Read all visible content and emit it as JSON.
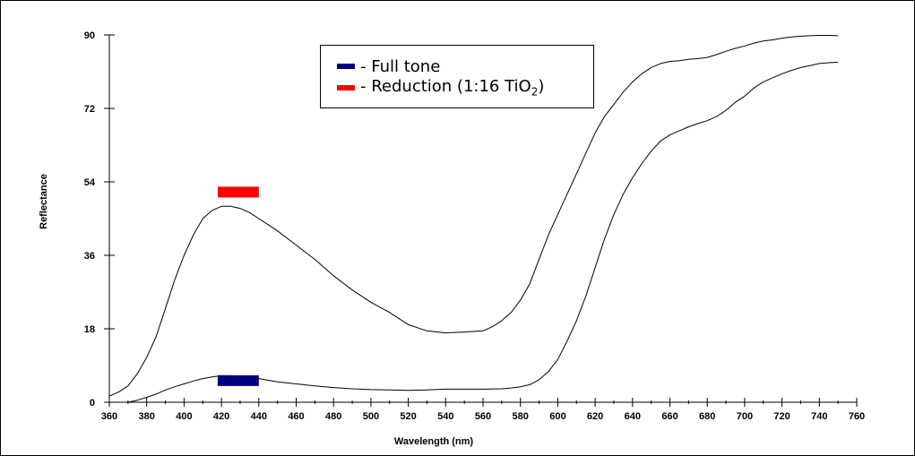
{
  "chart_data": {
    "type": "line",
    "title": "",
    "xlabel": "Wavelength (nm)",
    "ylabel": "Reflectance",
    "xlim": [
      360,
      760
    ],
    "ylim": [
      0,
      90
    ],
    "x_ticks": [
      "360",
      "380",
      "400",
      "420",
      "440",
      "460",
      "480",
      "500",
      "520",
      "540",
      "560",
      "580",
      "600",
      "620",
      "640",
      "660",
      "680",
      "700",
      "720",
      "740",
      "760"
    ],
    "y_ticks": [
      "0",
      "18",
      "36",
      "54",
      "72",
      "90"
    ],
    "legend": {
      "placement": "top-center",
      "entries": [
        {
          "label": "- Full tone",
          "color": "#000080"
        },
        {
          "label_prefix": "- Reduction (1:16 TiO",
          "label_sub": "2",
          "label_suffix": ")",
          "color": "#ff0000"
        }
      ]
    },
    "series": [
      {
        "name": "Reduction (1:16 TiO2)",
        "color": "#000000",
        "marker_color": "#ff0000",
        "marker": {
          "x": [
            418,
            440
          ],
          "y": 51.5
        },
        "x": [
          360,
          365,
          370,
          375,
          380,
          385,
          390,
          395,
          400,
          405,
          410,
          415,
          420,
          425,
          430,
          435,
          440,
          445,
          450,
          460,
          470,
          480,
          490,
          500,
          510,
          520,
          530,
          540,
          550,
          560,
          565,
          570,
          575,
          580,
          585,
          590,
          595,
          600,
          605,
          610,
          615,
          620,
          625,
          630,
          635,
          640,
          645,
          650,
          655,
          660,
          665,
          670,
          675,
          680,
          685,
          690,
          695,
          700,
          705,
          710,
          715,
          720,
          725,
          730,
          735,
          740,
          745,
          750
        ],
        "y": [
          1.5,
          2.5,
          4,
          7,
          11,
          16,
          23,
          30,
          36,
          41,
          45,
          47,
          48,
          48,
          47.5,
          46.5,
          45,
          43.5,
          42,
          38.5,
          35,
          31,
          27.5,
          24.5,
          22,
          19,
          17.5,
          17,
          17.2,
          17.5,
          18.5,
          20,
          22,
          25,
          29,
          35,
          41,
          46,
          51,
          56,
          61,
          66,
          70,
          73,
          76,
          78.5,
          80.5,
          82,
          83,
          83.5,
          83.7,
          84,
          84.2,
          84.5,
          85.2,
          86,
          86.7,
          87.3,
          88,
          88.5,
          88.8,
          89.2,
          89.5,
          89.7,
          89.8,
          89.9,
          89.9,
          89.8
        ]
      },
      {
        "name": "Full tone",
        "color": "#000000",
        "marker_color": "#000080",
        "marker": {
          "x": [
            418,
            440
          ],
          "y": 5.3
        },
        "x": [
          360,
          365,
          370,
          375,
          380,
          385,
          390,
          395,
          400,
          405,
          410,
          415,
          420,
          425,
          430,
          435,
          440,
          445,
          450,
          460,
          470,
          480,
          490,
          500,
          510,
          520,
          530,
          540,
          550,
          560,
          570,
          575,
          580,
          585,
          590,
          595,
          600,
          605,
          610,
          615,
          620,
          625,
          630,
          635,
          640,
          645,
          650,
          655,
          660,
          665,
          670,
          675,
          680,
          685,
          690,
          695,
          700,
          705,
          710,
          715,
          720,
          725,
          730,
          735,
          740,
          745,
          750
        ],
        "y": [
          0,
          0,
          0,
          0.5,
          1.2,
          2,
          3,
          3.8,
          4.5,
          5.2,
          5.8,
          6.2,
          6.5,
          6.5,
          6.3,
          6.1,
          5.8,
          5.4,
          5,
          4.5,
          4,
          3.6,
          3.3,
          3.1,
          3,
          2.9,
          3,
          3.2,
          3.2,
          3.2,
          3.3,
          3.5,
          3.8,
          4.3,
          5.5,
          7.5,
          10.5,
          15,
          20,
          26,
          33,
          40,
          46,
          51,
          55,
          58.5,
          61.5,
          64,
          65.5,
          66.5,
          67.5,
          68.3,
          69,
          70,
          71.5,
          73.5,
          75,
          77,
          78.5,
          79.5,
          80.5,
          81.3,
          82,
          82.5,
          83,
          83.2,
          83.3
        ]
      }
    ]
  }
}
